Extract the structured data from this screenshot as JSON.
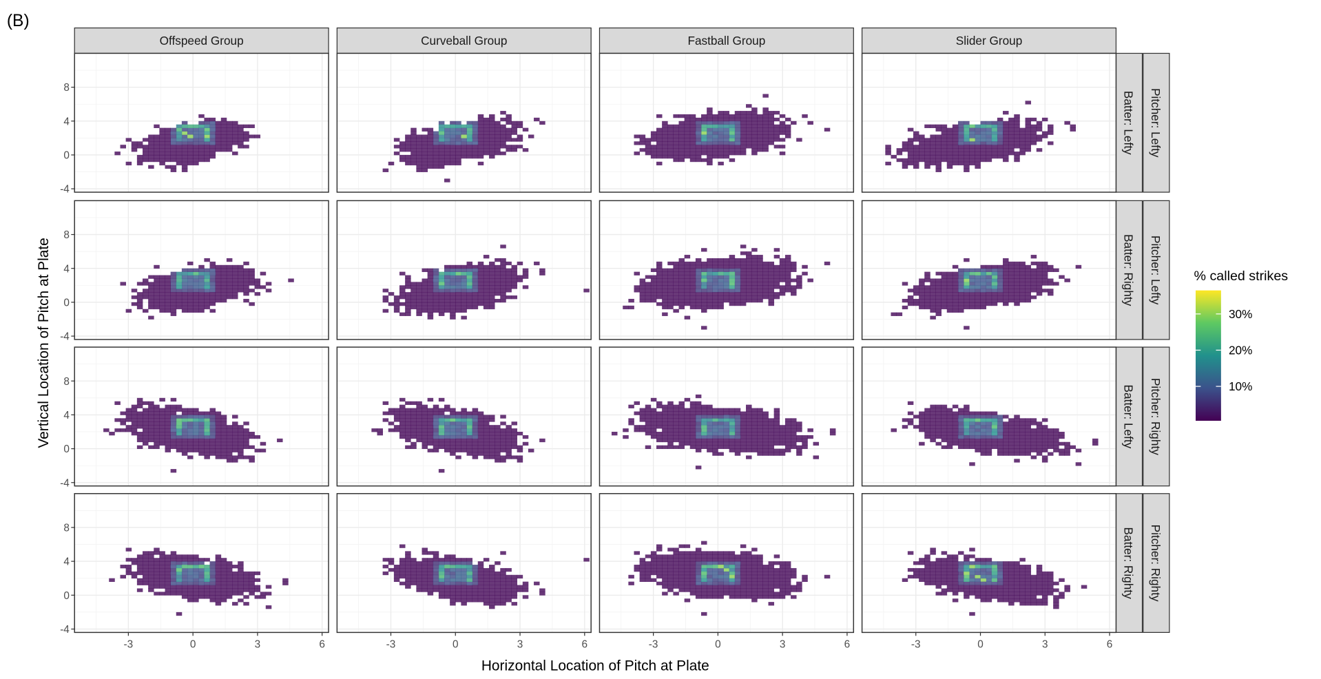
{
  "panel_label": "(B)",
  "chart_data": {
    "type": "heatmap",
    "title": "",
    "xlabel": "Horizontal Location of Pitch at Plate",
    "ylabel": "Vertical Location of Pitch at Plate",
    "xlim": [
      -5.5,
      6.3
    ],
    "ylim": [
      -4.4,
      12
    ],
    "x_ticks": [
      "-3",
      "0",
      "3",
      "6"
    ],
    "y_ticks": [
      "-4",
      "0",
      "4",
      "8"
    ],
    "x_tick_values": [
      -3,
      0,
      3,
      6
    ],
    "y_tick_values": [
      -4,
      0,
      4,
      8
    ],
    "grid": true,
    "columns": [
      "Offspeed Group",
      "Curveball Group",
      "Fastball Group",
      "Slider Group"
    ],
    "rows": [
      {
        "batter": "Batter: Lefty",
        "pitcher": "Pitcher: Lefty"
      },
      {
        "batter": "Batter: Righty",
        "pitcher": "Pitcher: Lefty"
      },
      {
        "batter": "Batter: Lefty",
        "pitcher": "Pitcher: Righty"
      },
      {
        "batter": "Batter: Righty",
        "pitcher": "Pitcher: Righty"
      }
    ],
    "strike_zone": {
      "x": [
        -0.8,
        0.8
      ],
      "y": [
        1.5,
        3.5
      ]
    },
    "panels": [
      [
        {
          "mx": 0.0,
          "my": 1.5,
          "sx": 0.9,
          "sy": 0.9,
          "rho": 0.45
        },
        {
          "mx": 0.1,
          "my": 1.4,
          "sx": 1.0,
          "sy": 1.0,
          "rho": 0.45
        },
        {
          "mx": 0.0,
          "my": 2.3,
          "sx": 1.2,
          "sy": 1.0,
          "rho": 0.35
        },
        {
          "mx": -0.3,
          "my": 1.4,
          "sx": 1.3,
          "sy": 1.0,
          "rho": 0.45
        }
      ],
      [
        {
          "mx": 0.2,
          "my": 1.7,
          "sx": 1.0,
          "sy": 1.0,
          "rho": 0.4
        },
        {
          "mx": 0.2,
          "my": 1.6,
          "sx": 1.1,
          "sy": 1.1,
          "rho": 0.45
        },
        {
          "mx": 0.0,
          "my": 2.3,
          "sx": 1.3,
          "sy": 1.1,
          "rho": 0.3
        },
        {
          "mx": 0.0,
          "my": 1.7,
          "sx": 1.2,
          "sy": 1.0,
          "rho": 0.45
        }
      ],
      [
        {
          "mx": -0.3,
          "my": 2.0,
          "sx": 1.1,
          "sy": 1.1,
          "rho": -0.45
        },
        {
          "mx": -0.1,
          "my": 2.0,
          "sx": 1.1,
          "sy": 1.1,
          "rho": -0.45
        },
        {
          "mx": 0.0,
          "my": 2.3,
          "sx": 1.4,
          "sy": 1.0,
          "rho": -0.3
        },
        {
          "mx": 0.3,
          "my": 1.9,
          "sx": 1.3,
          "sy": 1.0,
          "rho": -0.5
        }
      ],
      [
        {
          "mx": 0.0,
          "my": 2.1,
          "sx": 1.1,
          "sy": 1.0,
          "rho": -0.4
        },
        {
          "mx": 0.2,
          "my": 1.9,
          "sx": 1.1,
          "sy": 1.0,
          "rho": -0.45
        },
        {
          "mx": 0.0,
          "my": 2.4,
          "sx": 1.3,
          "sy": 1.0,
          "rho": -0.25
        },
        {
          "mx": 0.3,
          "my": 1.8,
          "sx": 1.2,
          "sy": 1.0,
          "rho": -0.45
        }
      ]
    ],
    "legend": {
      "title": "% called strikes",
      "labels": [
        "30%",
        "20%",
        "10%"
      ],
      "values": [
        30,
        20,
        10
      ],
      "range": [
        0.5,
        36.5
      ],
      "placement": "right",
      "colormap": [
        "#440154",
        "#3b528b",
        "#21918c",
        "#5ec962",
        "#fde725"
      ]
    }
  }
}
